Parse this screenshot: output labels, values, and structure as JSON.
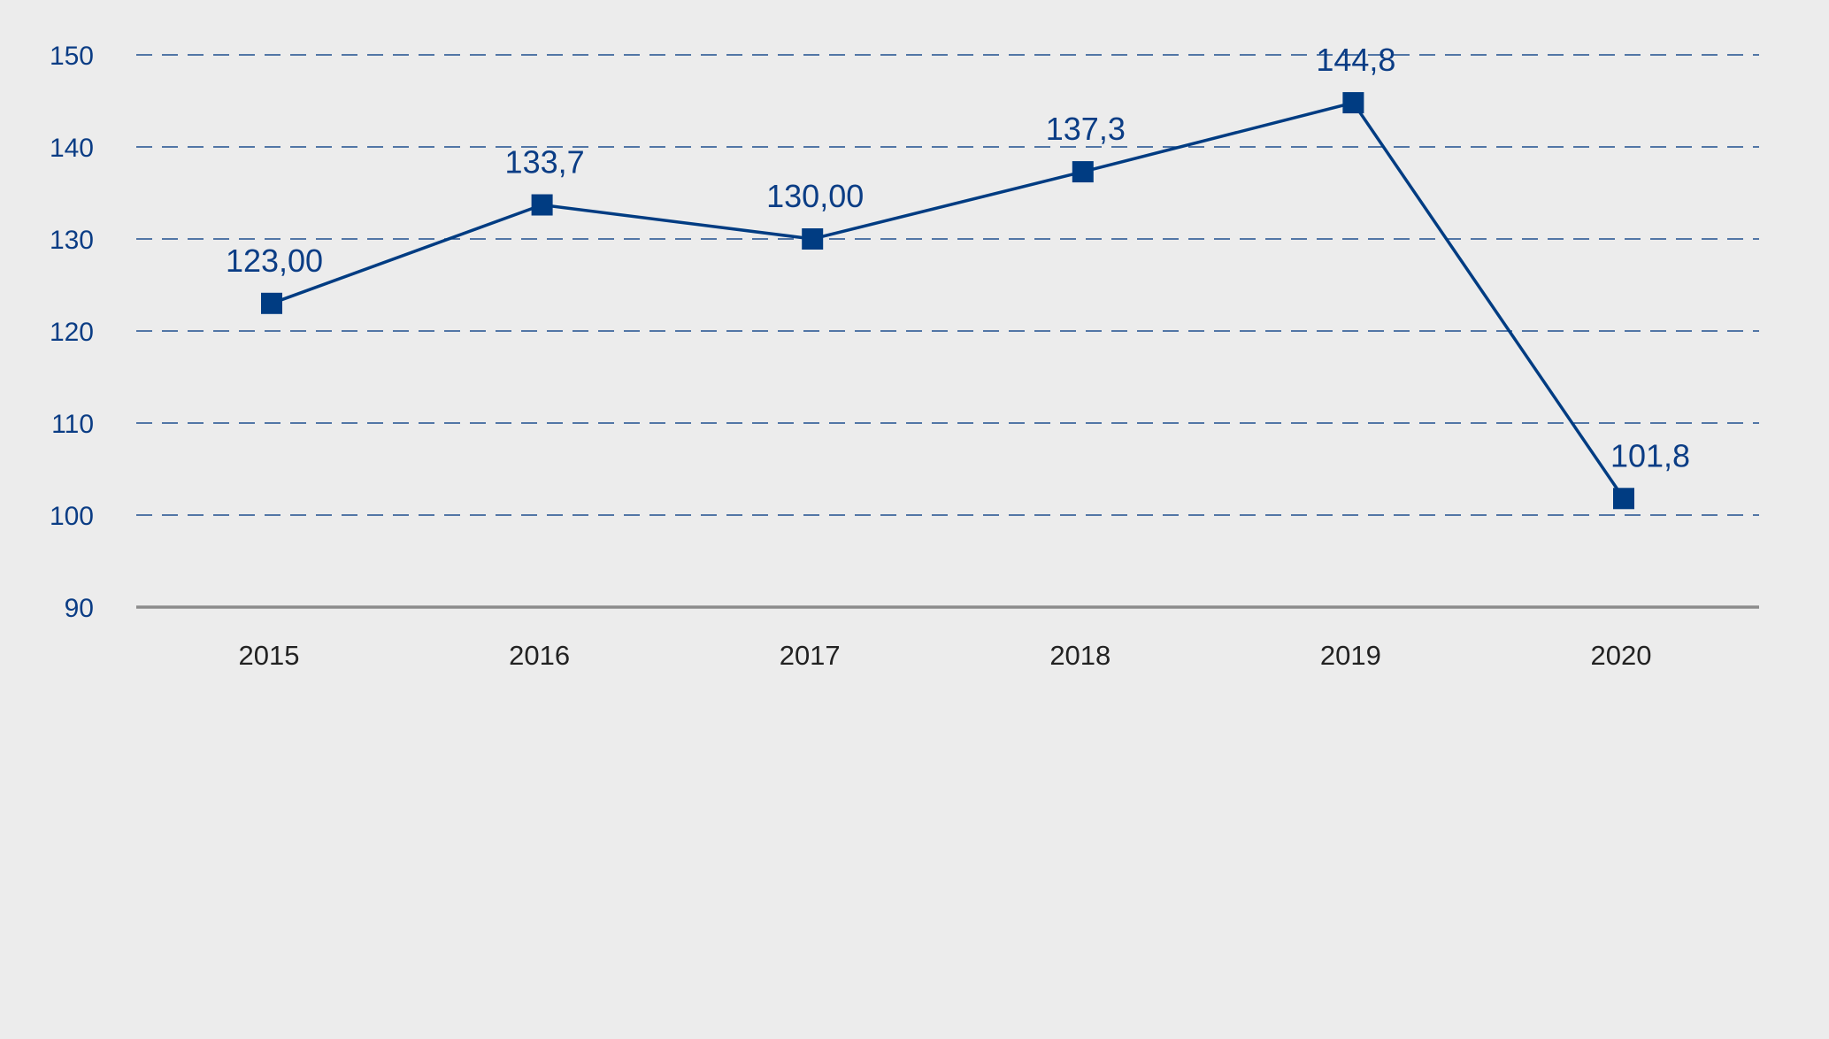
{
  "chart_data": {
    "type": "line",
    "title": "",
    "xlabel": "",
    "ylabel": "",
    "categories": [
      "2015",
      "2016",
      "2017",
      "2018",
      "2019",
      "2020"
    ],
    "series": [
      {
        "name": "",
        "values": [
          123.0,
          133.7,
          130.0,
          137.3,
          144.8,
          101.8
        ],
        "labels": [
          "123,00",
          "133,7",
          "130,00",
          "137,3",
          "144,8",
          "101,8"
        ]
      }
    ],
    "ylim": [
      90,
      150
    ],
    "yticks": [
      "90",
      "100",
      "110",
      "120",
      "130",
      "140",
      "150"
    ],
    "grid": true,
    "colors": {
      "line": "#003c82",
      "grid": "#1f4f8f",
      "axis": "#8c8c8c",
      "background": "#ececec"
    }
  }
}
